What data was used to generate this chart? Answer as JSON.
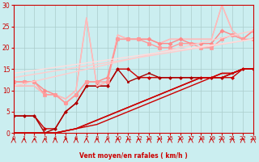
{
  "bg_color": "#cbeef0",
  "grid_color": "#aacccc",
  "xlabel": "Vent moyen/en rafales ( km/h )",
  "xlabel_color": "#cc0000",
  "tick_color": "#cc0000",
  "xmin": 0,
  "xmax": 23,
  "ymin": 0,
  "ymax": 30,
  "yticks": [
    0,
    5,
    10,
    15,
    20,
    25,
    30
  ],
  "xticks": [
    0,
    1,
    2,
    3,
    4,
    5,
    6,
    7,
    8,
    9,
    10,
    11,
    12,
    13,
    14,
    15,
    16,
    17,
    18,
    19,
    20,
    21,
    22,
    23
  ],
  "lines": [
    {
      "x": [
        0,
        1,
        2,
        3,
        4,
        5,
        6,
        7,
        8,
        9,
        10,
        11,
        12,
        13,
        14,
        15,
        16,
        17,
        18,
        19,
        20,
        21,
        22,
        23
      ],
      "y": [
        4,
        4,
        4,
        1,
        1,
        5,
        7,
        11,
        11,
        11,
        15,
        15,
        13,
        13,
        13,
        13,
        13,
        13,
        13,
        13,
        13,
        13,
        15,
        15
      ],
      "color": "#cc0000",
      "lw": 1.0,
      "marker": "D",
      "ms": 2.0,
      "alpha": 1.0
    },
    {
      "x": [
        0,
        1,
        2,
        3,
        4,
        5,
        6,
        7,
        8,
        9,
        10,
        11,
        12,
        13,
        14,
        15,
        16,
        17,
        18,
        19,
        20,
        21,
        22,
        23
      ],
      "y": [
        4,
        4,
        4,
        0,
        1,
        5,
        7,
        11,
        11,
        11,
        15,
        12,
        13,
        14,
        13,
        13,
        13,
        13,
        13,
        13,
        13,
        14,
        15,
        15
      ],
      "color": "#aa0000",
      "lw": 1.0,
      "marker": "s",
      "ms": 2.0,
      "alpha": 1.0
    },
    {
      "x": [
        0,
        1,
        2,
        3,
        4,
        5,
        6,
        7,
        8,
        9,
        10,
        11,
        12,
        13,
        14,
        15,
        16,
        17,
        18,
        19,
        20,
        21,
        22,
        23
      ],
      "y": [
        0,
        0,
        0,
        0,
        0,
        0.5,
        1,
        1.5,
        2,
        3,
        4,
        5,
        6,
        7,
        8,
        9,
        10,
        11,
        12,
        13,
        13,
        14,
        15,
        15
      ],
      "color": "#cc0000",
      "lw": 1.0,
      "marker": null,
      "ms": 0,
      "alpha": 1.0
    },
    {
      "x": [
        0,
        1,
        2,
        3,
        4,
        5,
        6,
        7,
        8,
        9,
        10,
        11,
        12,
        13,
        14,
        15,
        16,
        17,
        18,
        19,
        20,
        21,
        22,
        23
      ],
      "y": [
        0,
        0,
        0,
        0,
        0,
        0.5,
        1,
        2,
        3,
        4,
        5,
        6,
        7,
        8,
        9,
        10,
        11,
        12,
        13,
        13,
        14,
        14,
        15,
        15
      ],
      "color": "#cc0000",
      "lw": 1.0,
      "marker": null,
      "ms": 0,
      "alpha": 0.85
    },
    {
      "x": [
        0,
        1,
        2,
        3,
        4,
        5,
        6,
        7,
        8,
        9,
        10,
        11,
        12,
        13,
        14,
        15,
        16,
        17,
        18,
        19,
        20,
        21,
        22,
        23
      ],
      "y": [
        0,
        0,
        0,
        0,
        0,
        0.5,
        1,
        2,
        3,
        4,
        5,
        6,
        7,
        8,
        9,
        10,
        11,
        12,
        13,
        13,
        14,
        14,
        15,
        15
      ],
      "color": "#cc0000",
      "lw": 1.0,
      "marker": null,
      "ms": 0,
      "alpha": 0.7
    },
    {
      "x": [
        0,
        1,
        2,
        3,
        4,
        5,
        6,
        7,
        8,
        9,
        10,
        11,
        12,
        13,
        14,
        15,
        16,
        17,
        18,
        19,
        20,
        21,
        22,
        23
      ],
      "y": [
        0,
        0,
        0,
        0,
        0,
        0.5,
        1,
        2,
        3,
        4,
        5,
        6,
        7,
        8,
        9,
        10,
        11,
        12,
        13,
        13,
        14,
        14,
        15,
        15
      ],
      "color": "#cc0000",
      "lw": 1.0,
      "marker": null,
      "ms": 0,
      "alpha": 0.55
    },
    {
      "x": [
        0,
        1,
        2,
        3,
        4,
        5,
        6,
        7,
        8,
        9,
        10,
        11,
        12,
        13,
        14,
        15,
        16,
        17,
        18,
        19,
        20,
        21,
        22,
        23
      ],
      "y": [
        0,
        0,
        0,
        0,
        0,
        0.5,
        1,
        2,
        3,
        4,
        5,
        6,
        7,
        8,
        9,
        10,
        11,
        12,
        13,
        13,
        14,
        14,
        15,
        15
      ],
      "color": "#cc0000",
      "lw": 1.0,
      "marker": null,
      "ms": 0,
      "alpha": 0.4
    },
    {
      "x": [
        0,
        1,
        2,
        3,
        4,
        5,
        6,
        7,
        8,
        9,
        10,
        11,
        12,
        13,
        14,
        15,
        16,
        17,
        18,
        19,
        20,
        21,
        22,
        23
      ],
      "y": [
        11,
        11,
        11,
        9,
        9,
        8,
        10,
        27,
        11,
        12,
        23,
        22,
        22,
        22,
        21,
        22,
        22,
        22,
        22,
        22,
        30,
        24,
        22,
        24
      ],
      "color": "#ffaaaa",
      "lw": 1.0,
      "marker": null,
      "ms": 0,
      "alpha": 1.0
    },
    {
      "x": [
        0,
        1,
        2,
        3,
        4,
        5,
        6,
        7,
        8,
        9,
        10,
        11,
        12,
        13,
        14,
        15,
        16,
        17,
        18,
        19,
        20,
        21,
        22,
        23
      ],
      "y": [
        11,
        11,
        11,
        9,
        9,
        8,
        10,
        27,
        11,
        12,
        23,
        22,
        22,
        22,
        21,
        22,
        22,
        22,
        22,
        22,
        30,
        24,
        22,
        24
      ],
      "color": "#ffbbbb",
      "lw": 1.0,
      "marker": null,
      "ms": 0,
      "alpha": 1.0
    },
    {
      "x": [
        0,
        1,
        2,
        3,
        4,
        5,
        6,
        7,
        8,
        9,
        10,
        11,
        12,
        13,
        14,
        15,
        16,
        17,
        18,
        19,
        20,
        21,
        22,
        23
      ],
      "y": [
        12,
        12,
        12,
        10,
        9,
        7,
        9,
        12,
        12,
        13,
        22,
        22,
        22,
        22,
        21,
        21,
        22,
        21,
        21,
        21,
        24,
        23,
        22,
        24
      ],
      "color": "#ff8888",
      "lw": 1.0,
      "marker": "D",
      "ms": 2.5,
      "alpha": 1.0
    },
    {
      "x": [
        0,
        1,
        2,
        3,
        4,
        5,
        6,
        7,
        8,
        9,
        10,
        11,
        12,
        13,
        14,
        15,
        16,
        17,
        18,
        19,
        20,
        21,
        22,
        23
      ],
      "y": [
        12,
        12,
        12,
        9,
        9,
        7,
        9,
        12,
        12,
        12,
        22,
        22,
        22,
        21,
        20,
        20,
        21,
        21,
        20,
        20,
        22,
        23,
        22,
        22
      ],
      "color": "#ff9999",
      "lw": 1.0,
      "marker": "s",
      "ms": 2.5,
      "alpha": 1.0
    },
    {
      "x": [
        0,
        23
      ],
      "y": [
        11,
        24
      ],
      "color": "#ffcccc",
      "lw": 1.0,
      "marker": null,
      "ms": 0,
      "alpha": 1.0
    },
    {
      "x": [
        0,
        23
      ],
      "y": [
        13,
        22
      ],
      "color": "#ffcccc",
      "lw": 1.0,
      "marker": null,
      "ms": 0,
      "alpha": 1.0
    },
    {
      "x": [
        0,
        23
      ],
      "y": [
        14,
        22
      ],
      "color": "#ffdddd",
      "lw": 1.0,
      "marker": null,
      "ms": 0,
      "alpha": 1.0
    }
  ],
  "arrow_color": "#cc0000"
}
